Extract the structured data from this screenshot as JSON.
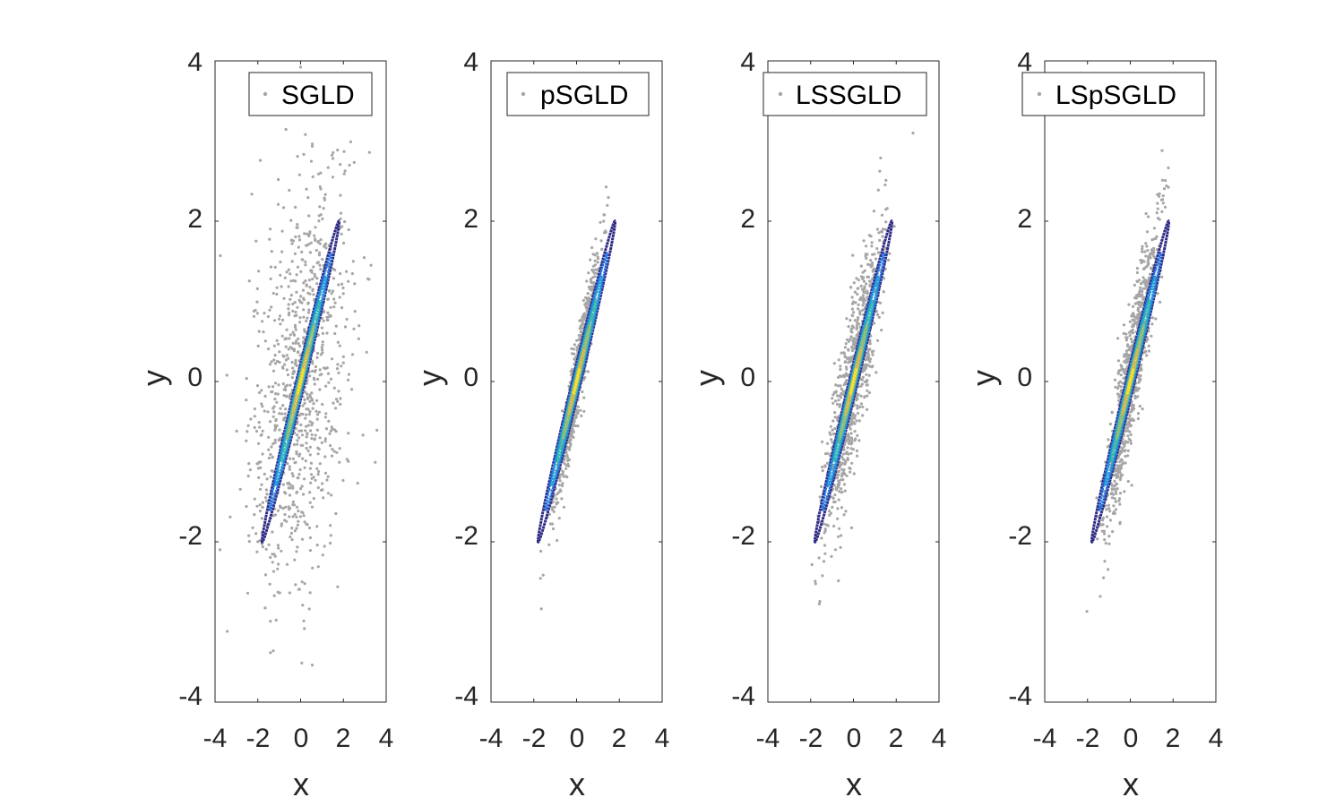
{
  "chart_data": [
    {
      "type": "scatter",
      "legend": "SGLD",
      "xlabel": "x",
      "ylabel": "y",
      "xlim": [
        -4,
        4
      ],
      "ylim": [
        -4,
        4
      ],
      "xticks": [
        "-4",
        "-2",
        "0",
        "2",
        "4"
      ],
      "yticks": [
        "-4",
        "-2",
        "0",
        "2",
        "4"
      ],
      "scatter": {
        "color": "#a6a6a6",
        "spread_x": 1.4,
        "spread_y": 1.35,
        "correlation": 0.4
      }
    },
    {
      "type": "scatter",
      "legend": "pSGLD",
      "xlabel": "x",
      "ylabel": "y",
      "xlim": [
        -4,
        4
      ],
      "ylim": [
        -4,
        4
      ],
      "xticks": [
        "-4",
        "-2",
        "0",
        "2",
        "4"
      ],
      "yticks": [
        "-4",
        "-2",
        "0",
        "2",
        "4"
      ],
      "scatter": {
        "color": "#a6a6a6",
        "spread_x": 0.6,
        "spread_y": 0.75,
        "correlation": 0.95
      }
    },
    {
      "type": "scatter",
      "legend": "LSSGLD",
      "xlabel": "x",
      "ylabel": "y",
      "xlim": [
        -4,
        4
      ],
      "ylim": [
        -4,
        4
      ],
      "xticks": [
        "-4",
        "-2",
        "0",
        "2",
        "4"
      ],
      "yticks": [
        "-4",
        "-2",
        "0",
        "2",
        "4"
      ],
      "scatter": {
        "color": "#a6a6a6",
        "spread_x": 0.8,
        "spread_y": 0.95,
        "correlation": 0.85
      }
    },
    {
      "type": "scatter",
      "legend": "LSpSGLD",
      "xlabel": "x",
      "ylabel": "y",
      "xlim": [
        -4,
        4
      ],
      "ylim": [
        -4,
        4
      ],
      "xticks": [
        "-4",
        "-2",
        "0",
        "2",
        "4"
      ],
      "yticks": [
        "-4",
        "-2",
        "0",
        "2",
        "4"
      ],
      "scatter": {
        "color": "#a6a6a6",
        "spread_x": 0.75,
        "spread_y": 0.95,
        "correlation": 0.9
      }
    }
  ],
  "contours": {
    "description_levels": [
      1.0,
      0.8,
      0.65,
      0.5,
      0.35,
      0.2,
      0.08
    ],
    "colors": [
      "#2e2a86",
      "#1a6fe0",
      "#1e9bd8",
      "#2fb7b0",
      "#9bbf72",
      "#e2b84a",
      "#f7e52a"
    ],
    "outer_extent_x": [
      -1.8,
      1.8
    ],
    "outer_extent_y": [
      -2.0,
      2.0
    ]
  }
}
